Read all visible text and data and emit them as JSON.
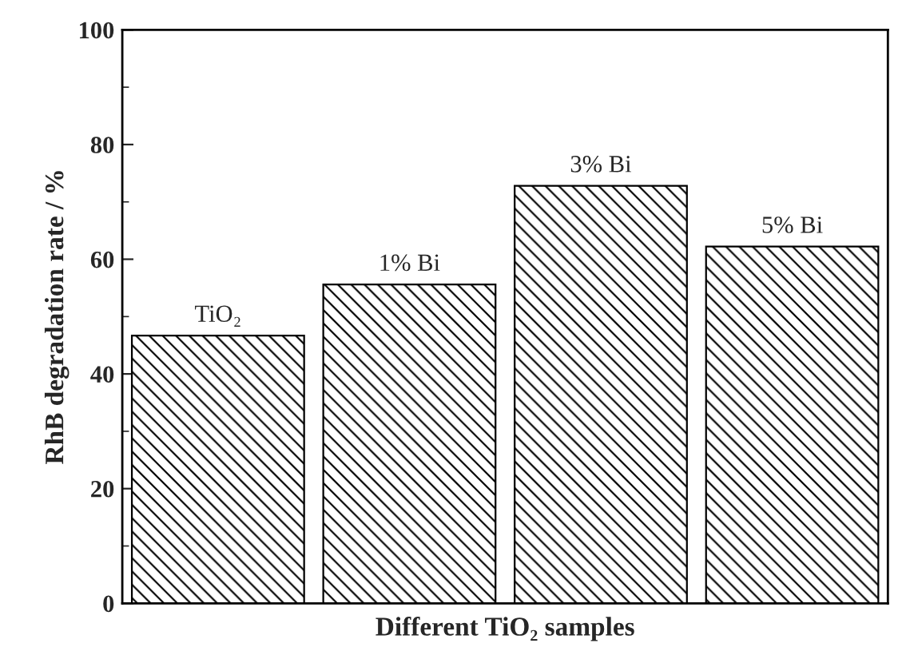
{
  "chart_data": {
    "type": "bar",
    "xlabel": "Different TiO₂ samples",
    "ylabel": "RhB degradation rate / %",
    "categories": [
      "TiO₂",
      "1% Bi",
      "3% Bi",
      "5% Bi"
    ],
    "values": [
      46.7,
      55.6,
      72.8,
      62.2
    ],
    "ylim": [
      0,
      100
    ],
    "yticks": [
      0,
      20,
      40,
      60,
      80,
      100
    ],
    "grid": false,
    "tick_labels": "y"
  }
}
